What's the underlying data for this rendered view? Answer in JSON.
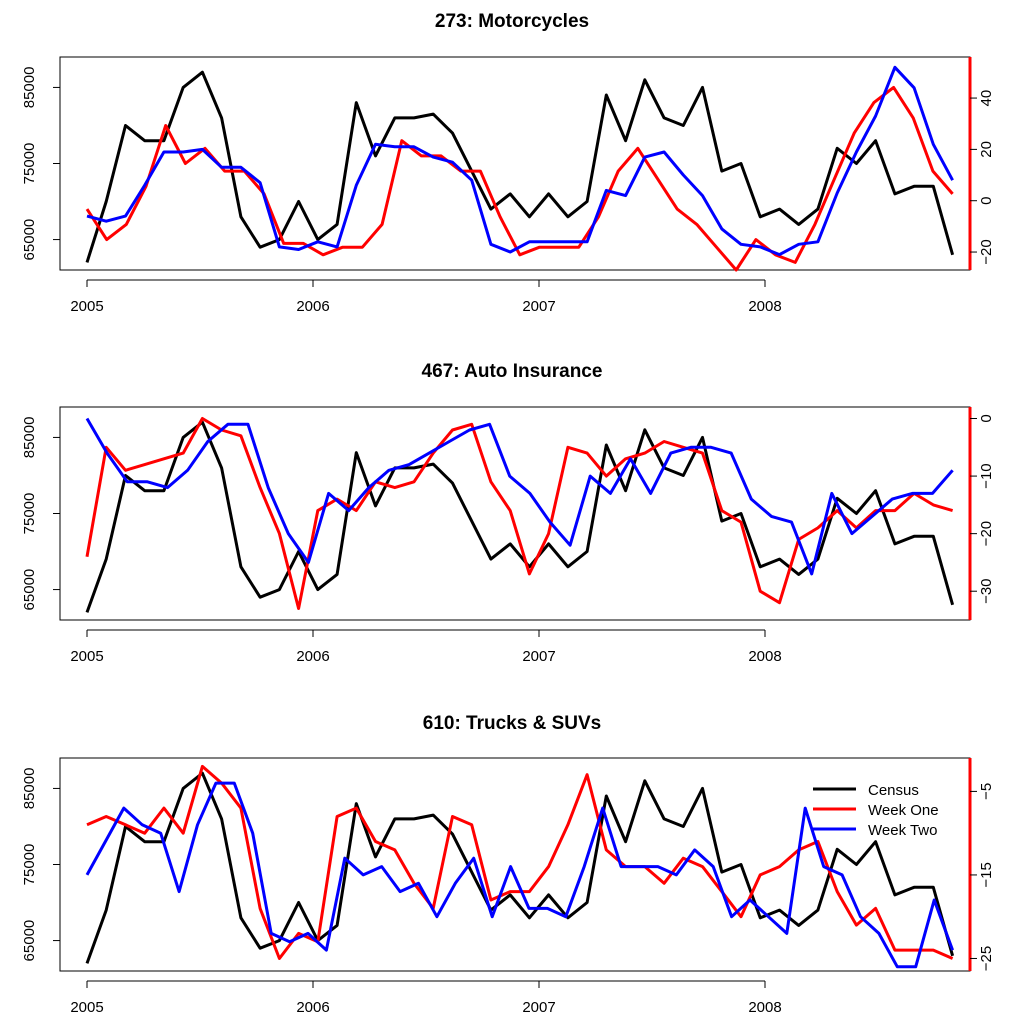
{
  "colors": {
    "census": "#000000",
    "week_one": "#ff0000",
    "week_two": "#0000ff",
    "frame": "#000000"
  },
  "legend": {
    "placement": "top-right",
    "items": [
      "Census",
      "Week One",
      "Week Two"
    ]
  },
  "chart_data": [
    {
      "type": "line",
      "title": "273: Motorcycles",
      "xlabel": "",
      "ylabel": "",
      "x_range": [
        2005,
        2008.83
      ],
      "x_ticks": [
        2005,
        2006,
        2007,
        2008
      ],
      "x_tick_labels": [
        "2005",
        "2006",
        "2007",
        "2008"
      ],
      "ylim_left": [
        61000,
        89000
      ],
      "y_ticks_left": [
        65000,
        75000,
        85000
      ],
      "y_tick_labels_left": [
        "65000",
        "75000",
        "85000"
      ],
      "ylim_right": [
        -27,
        56
      ],
      "y_ticks_right": [
        -20,
        0,
        20,
        40
      ],
      "y_tick_labels_right": [
        "−20",
        "0",
        "20",
        "40"
      ],
      "series": [
        {
          "name": "Census",
          "axis": "left",
          "values": [
            62000,
            70000,
            80000,
            78000,
            78000,
            85000,
            87000,
            81000,
            68000,
            64000,
            65000,
            70000,
            65000,
            67000,
            83000,
            76000,
            81000,
            81000,
            81500,
            79000,
            74000,
            69000,
            71000,
            68000,
            71000,
            68000,
            70000,
            84000,
            78000,
            86000,
            81000,
            80000,
            85000,
            74000,
            75000,
            68000,
            69000,
            67000,
            69000,
            77000,
            75000,
            78000,
            71000,
            72000,
            72000,
            63000
          ]
        },
        {
          "name": "Week One",
          "axis": "left",
          "values": [
            69000,
            65000,
            67000,
            72000,
            80000,
            75000,
            77000,
            74000,
            74000,
            71000,
            64500,
            64500,
            63000,
            64000,
            64000,
            67000,
            78000,
            76000,
            76000,
            74000,
            74000,
            68000,
            63000,
            64000,
            64000,
            64000,
            68000,
            74000,
            77000,
            73000,
            69000,
            67000,
            64000,
            61000,
            65000,
            63000,
            62000,
            67000,
            73000,
            79000,
            83000,
            85000,
            81000,
            74000,
            71000
          ]
        },
        {
          "name": "Week Two",
          "axis": "right",
          "values": [
            -6,
            -8,
            -6,
            6,
            19,
            19,
            20,
            13,
            13,
            7,
            -18,
            -19,
            -16,
            -18,
            6,
            22,
            21,
            21,
            17,
            15,
            8,
            -17,
            -20,
            -16,
            -16,
            -16,
            -16,
            4,
            2,
            17,
            19,
            10,
            2,
            -11,
            -17,
            -18,
            -21,
            -17,
            -16,
            3,
            19,
            33,
            52,
            44,
            22,
            8
          ]
        }
      ]
    },
    {
      "type": "line",
      "title": "467: Auto Insurance",
      "xlabel": "",
      "ylabel": "",
      "x_range": [
        2005,
        2008.83
      ],
      "x_ticks": [
        2005,
        2006,
        2007,
        2008
      ],
      "x_tick_labels": [
        "2005",
        "2006",
        "2007",
        "2008"
      ],
      "ylim_left": [
        61000,
        89000
      ],
      "y_ticks_left": [
        65000,
        75000,
        85000
      ],
      "y_tick_labels_left": [
        "65000",
        "75000",
        "85000"
      ],
      "ylim_right": [
        -35,
        2
      ],
      "y_ticks_right": [
        -30,
        -20,
        -10,
        0
      ],
      "y_tick_labels_right": [
        "−30",
        "−20",
        "−10",
        "0"
      ],
      "series": [
        {
          "name": "Census",
          "axis": "left",
          "values": [
            62000,
            69000,
            80000,
            78000,
            78000,
            85000,
            87000,
            81000,
            68000,
            64000,
            65000,
            70000,
            65000,
            67000,
            83000,
            76000,
            81000,
            81000,
            81500,
            79000,
            74000,
            69000,
            71000,
            68000,
            71000,
            68000,
            70000,
            84000,
            78000,
            86000,
            81000,
            80000,
            85000,
            74000,
            75000,
            68000,
            69000,
            67000,
            69000,
            77000,
            75000,
            78000,
            71000,
            72000,
            72000,
            63000
          ]
        },
        {
          "name": "Week One",
          "axis": "right",
          "values": [
            -24,
            -5,
            -9,
            -8,
            -7,
            -6,
            0,
            -2,
            -3,
            -12,
            -20,
            -33,
            -16,
            -14,
            -16,
            -11,
            -12,
            -11,
            -6,
            -2,
            -1,
            -11,
            -16,
            -27,
            -20,
            -5,
            -6,
            -10,
            -7,
            -6,
            -4,
            -5,
            -6,
            -16,
            -18,
            -30,
            -32,
            -21,
            -19,
            -16,
            -19,
            -16,
            -16,
            -13,
            -15,
            -16
          ]
        },
        {
          "name": "Week Two",
          "axis": "right",
          "values": [
            0,
            -6,
            -11,
            -11,
            -12,
            -9,
            -4,
            -1,
            -1,
            -12,
            -20,
            -25,
            -13,
            -16,
            -12,
            -9,
            -8,
            -6,
            -4,
            -2,
            -1,
            -10,
            -13,
            -18,
            -22,
            -10,
            -13,
            -7,
            -13,
            -6,
            -5,
            -5,
            -6,
            -14,
            -17,
            -18,
            -27,
            -13,
            -20,
            -17,
            -14,
            -13,
            -13,
            -9
          ]
        }
      ]
    },
    {
      "type": "line",
      "title": "610: Trucks & SUVs",
      "xlabel": "",
      "ylabel": "",
      "x_range": [
        2005,
        2008.83
      ],
      "x_ticks": [
        2005,
        2006,
        2007,
        2008
      ],
      "x_tick_labels": [
        "2005",
        "2006",
        "2007",
        "2008"
      ],
      "ylim_left": [
        61000,
        89000
      ],
      "y_ticks_left": [
        65000,
        75000,
        85000
      ],
      "y_tick_labels_left": [
        "65000",
        "75000",
        "85000"
      ],
      "ylim_right": [
        -26.5,
        -1
      ],
      "y_ticks_right": [
        -25,
        -15,
        -5
      ],
      "y_tick_labels_right": [
        "−25",
        "−15",
        "−5"
      ],
      "series": [
        {
          "name": "Census",
          "axis": "left",
          "values": [
            62000,
            69000,
            80000,
            78000,
            78000,
            85000,
            87000,
            81000,
            68000,
            64000,
            65000,
            70000,
            65000,
            67000,
            83000,
            76000,
            81000,
            81000,
            81500,
            79000,
            74000,
            69000,
            71000,
            68000,
            71000,
            68000,
            70000,
            84000,
            78000,
            86000,
            81000,
            80000,
            85000,
            74000,
            75000,
            68000,
            69000,
            67000,
            69000,
            77000,
            75000,
            78000,
            71000,
            72000,
            72000,
            63000
          ]
        },
        {
          "name": "Week One",
          "axis": "right",
          "values": [
            -9,
            -8,
            -9,
            -10,
            -7,
            -10,
            -2,
            -4,
            -7,
            -19,
            -25,
            -22,
            -23,
            -8,
            -7,
            -11,
            -12,
            -16,
            -19,
            -8,
            -9,
            -18,
            -17,
            -17,
            -14,
            -9,
            -3,
            -12,
            -14,
            -14,
            -16,
            -13,
            -14,
            -17,
            -20,
            -15,
            -14,
            -12,
            -11,
            -17,
            -21,
            -19,
            -24,
            -24,
            -24,
            -25
          ]
        },
        {
          "name": "Week Two",
          "axis": "right",
          "values": [
            -15,
            -11,
            -7,
            -9,
            -10,
            -17,
            -9,
            -4,
            -4,
            -10,
            -22,
            -23,
            -22,
            -24,
            -13,
            -15,
            -14,
            -17,
            -16,
            -20,
            -16,
            -13,
            -20,
            -14,
            -19,
            -19,
            -20,
            -14,
            -7,
            -14,
            -14,
            -14,
            -15,
            -12,
            -14,
            -20,
            -18,
            -20,
            -22,
            -7,
            -14,
            -15,
            -20,
            -22,
            -26,
            -26,
            -18,
            -24
          ]
        }
      ]
    }
  ]
}
